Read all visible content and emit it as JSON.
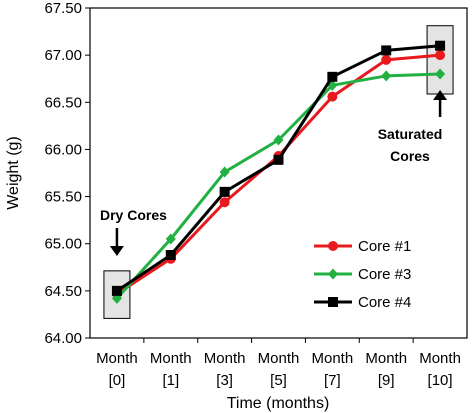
{
  "chart_data": {
    "type": "line",
    "title": "",
    "xlabel": "Time (months)",
    "ylabel": "Weight (g)",
    "ylim": [
      64.0,
      67.5
    ],
    "yticks": [
      "64.00",
      "64.50",
      "65.00",
      "65.50",
      "66.00",
      "66.50",
      "67.00",
      "67.50"
    ],
    "categories": [
      {
        "line1": "Month",
        "line2": "[0]"
      },
      {
        "line1": "Month",
        "line2": "[1]"
      },
      {
        "line1": "Month",
        "line2": "[3]"
      },
      {
        "line1": "Month",
        "line2": "[5]"
      },
      {
        "line1": "Month",
        "line2": "[7]"
      },
      {
        "line1": "Month",
        "line2": "[9]"
      },
      {
        "line1": "Month",
        "line2": "[10]"
      }
    ],
    "grid": false,
    "legend_position": "bottom-right",
    "series": [
      {
        "name": "Core #1",
        "color": "#e8191f",
        "marker": "circle",
        "values": [
          64.47,
          64.84,
          65.44,
          65.93,
          66.56,
          66.95,
          67.0
        ]
      },
      {
        "name": "Core #3",
        "color": "#22b043",
        "marker": "diamond",
        "values": [
          64.42,
          65.05,
          65.76,
          66.1,
          66.68,
          66.78,
          66.8
        ]
      },
      {
        "name": "Core #4",
        "color": "#000000",
        "marker": "square",
        "values": [
          64.5,
          64.88,
          65.55,
          65.89,
          66.77,
          67.05,
          67.1
        ]
      }
    ],
    "annotations": [
      {
        "text": "Dry Cores",
        "target_index": 0
      },
      {
        "line1": "Saturated",
        "line2": "Cores",
        "target_index": 6
      }
    ]
  }
}
